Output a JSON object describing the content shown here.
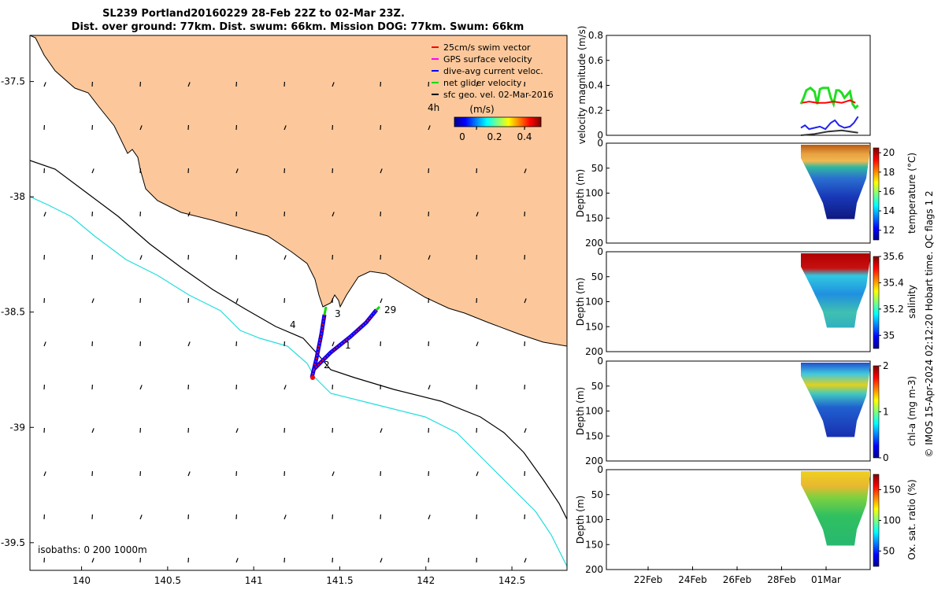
{
  "header": {
    "line1": "SL239 Portland20160229 28-Feb 22Z to 02-Mar 23Z.",
    "line2": "Dist. over ground: 77km. Dist. swum: 66km. Mission DOG: 77km. Swum: 66km"
  },
  "map": {
    "x_ticks": [
      "140",
      "140.5",
      "141",
      "141.5",
      "142",
      "142.5"
    ],
    "y_ticks": [
      "-37.5",
      "-38",
      "-38.5",
      "-39",
      "-39.5"
    ],
    "xlim": [
      139.7,
      142.82
    ],
    "ylim": [
      -39.62,
      -37.3
    ],
    "isobaths_label": "isobaths: 0   200  1000m",
    "legend": [
      {
        "label": "25cm/s swim vector",
        "color": "#ff0000"
      },
      {
        "label": "GPS surface velocity",
        "color": "#ff00ff"
      },
      {
        "label": "dive-avg current veloc.",
        "color": "#0000ff"
      },
      {
        "label": "net glider velocity",
        "color": "#00dd00"
      },
      {
        "label": "sfc geo. vel. 02-Mar-2016",
        "color": "#000000"
      }
    ],
    "colorbar": {
      "left_label": "4h",
      "units": "(m/s)",
      "ticks": [
        "0",
        "0.2",
        "0.4"
      ],
      "vmax": 0.5
    },
    "track_labels": [
      "1",
      "2",
      "3",
      "4",
      "29"
    ],
    "land_color": "#fcc89b",
    "isobath_200_color": "#000000",
    "isobath_1000_color": "#22dddd"
  },
  "chart_data": [
    {
      "type": "line",
      "ylabel": "velocity magnitude (m/s)",
      "ylim": [
        0,
        0.8
      ],
      "y_ticks": [
        "0",
        "0.2",
        "0.4",
        "0.6",
        "0.8"
      ],
      "series": [
        {
          "name": "net glider velocity",
          "color": "#22dd22",
          "x": [
            0.0,
            0.1,
            0.2,
            0.35,
            0.5,
            0.6,
            0.7,
            0.8,
            1.0,
            1.1,
            1.2,
            1.3,
            1.4,
            1.5,
            1.6,
            1.8,
            1.9,
            2.0,
            2.1
          ],
          "values": [
            0.25,
            0.3,
            0.36,
            0.38,
            0.35,
            0.25,
            0.37,
            0.38,
            0.38,
            0.3,
            0.25,
            0.36,
            0.36,
            0.34,
            0.3,
            0.35,
            0.25,
            0.22,
            0.24
          ]
        },
        {
          "name": "GPS surface velocity",
          "color": "#ff0000",
          "x": [
            0.05,
            0.3,
            0.6,
            0.9,
            1.2,
            1.5,
            1.8,
            2.0
          ],
          "values": [
            0.26,
            0.27,
            0.26,
            0.26,
            0.27,
            0.26,
            0.28,
            0.26
          ]
        },
        {
          "name": "dive-avg current veloc.",
          "color": "#2222ee",
          "x": [
            0.0,
            0.15,
            0.3,
            0.5,
            0.7,
            0.9,
            1.1,
            1.25,
            1.4,
            1.6,
            1.8,
            1.95,
            2.1
          ],
          "values": [
            0.06,
            0.08,
            0.05,
            0.06,
            0.07,
            0.05,
            0.1,
            0.12,
            0.08,
            0.06,
            0.07,
            0.1,
            0.15
          ]
        },
        {
          "name": "sfc geo. vel. 02-Mar-2016",
          "color": "#333333",
          "x": [
            0.0,
            0.5,
            1.0,
            1.5,
            2.1
          ],
          "values": [
            0.0,
            0.01,
            0.03,
            0.04,
            0.02
          ]
        }
      ]
    },
    {
      "type": "heatmap",
      "cbar_label": "temperature (°C)",
      "y_label": "Depth (m)",
      "y_ticks": [
        "0",
        "50",
        "100",
        "150",
        "200"
      ],
      "cbar_ticks": [
        "12",
        "14",
        "16",
        "18",
        "20"
      ],
      "vmin": 11,
      "vmax": 20.5
    },
    {
      "type": "heatmap",
      "cbar_label": "salinity",
      "y_label": "Depth (m)",
      "y_ticks": [
        "0",
        "50",
        "100",
        "150",
        "200"
      ],
      "cbar_ticks": [
        "35",
        "35.2",
        "35.4",
        "35.6"
      ],
      "vmin": 34.9,
      "vmax": 35.6
    },
    {
      "type": "heatmap",
      "cbar_label": "chl-a (mg m-3)",
      "y_label": "Depth (m)",
      "y_ticks": [
        "0",
        "50",
        "100",
        "150",
        "200"
      ],
      "cbar_ticks": [
        "0",
        "1",
        "2"
      ],
      "vmin": 0,
      "vmax": 2
    },
    {
      "type": "heatmap",
      "cbar_label": "Ox. sat. ratio (%)",
      "y_label": "Depth (m)",
      "y_ticks": [
        "0",
        "50",
        "100",
        "150",
        "200"
      ],
      "cbar_ticks": [
        "50",
        "100",
        "150"
      ],
      "vmin": 25,
      "vmax": 175
    }
  ],
  "time_axis": {
    "labels": [
      "22Feb",
      "24Feb",
      "26Feb",
      "28Feb",
      "01Mar"
    ]
  },
  "side_note": "© IMOS 15-Apr-2024 02:12:20 Hobart time. QC flags 1  2"
}
